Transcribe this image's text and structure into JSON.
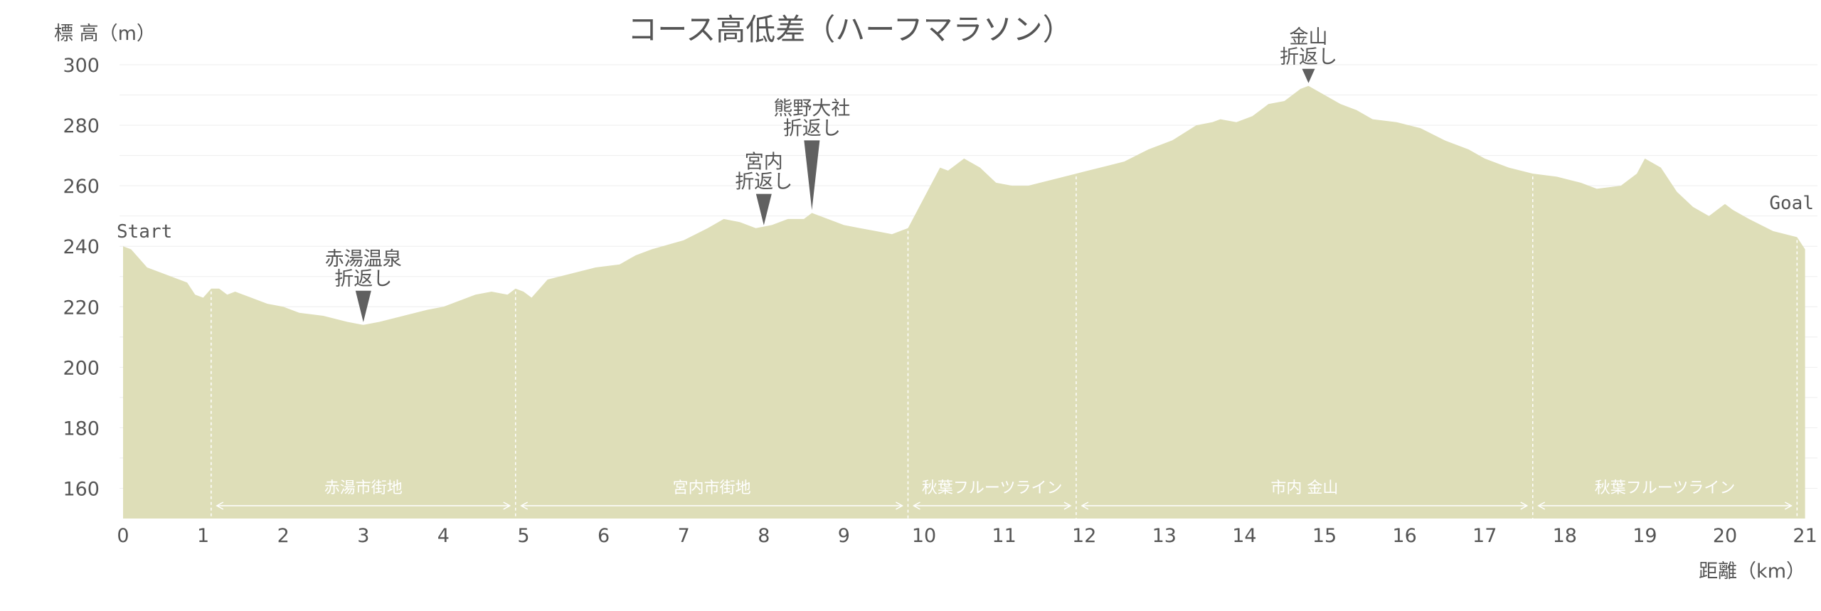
{
  "chart_data": {
    "type": "area",
    "title": "コース高低差（ハーフマラソン）",
    "ylabel": "標 高（m）",
    "xlabel": "距離（km）",
    "ylim": [
      150,
      300
    ],
    "xlim": [
      0,
      21
    ],
    "yticks": [
      160,
      180,
      200,
      220,
      240,
      260,
      280,
      300
    ],
    "xticks": [
      0,
      1,
      2,
      3,
      4,
      5,
      6,
      7,
      8,
      9,
      10,
      11,
      12,
      13,
      14,
      15,
      16,
      17,
      18,
      19,
      20,
      21
    ],
    "grid": true,
    "colors": {
      "fill": "#dedeb8",
      "grid": "#eeeeee",
      "text": "#555555",
      "marker": "#606060",
      "segment": "#ffffff"
    },
    "series": [
      {
        "x": [
          0,
          0.1,
          0.3,
          0.4,
          0.6,
          0.8,
          0.9,
          1.0,
          1.1,
          1.2,
          1.3,
          1.4,
          1.6,
          1.8,
          2.0,
          2.2,
          2.5,
          2.8,
          3.0,
          3.2,
          3.5,
          3.8,
          4.0,
          4.2,
          4.4,
          4.6,
          4.8,
          4.9,
          5.0,
          5.1,
          5.3,
          5.6,
          5.9,
          6.2,
          6.4,
          6.6,
          7.0,
          7.3,
          7.5,
          7.7,
          7.9,
          8.1,
          8.3,
          8.5,
          8.6,
          8.8,
          9.0,
          9.2,
          9.4,
          9.6,
          9.8,
          10.0,
          10.2,
          10.3,
          10.5,
          10.7,
          10.9,
          11.1,
          11.3,
          11.6,
          11.9,
          12.2,
          12.5,
          12.8,
          13.1,
          13.4,
          13.6,
          13.7,
          13.9,
          14.1,
          14.3,
          14.5,
          14.7,
          14.8,
          15.0,
          15.2,
          15.4,
          15.6,
          15.9,
          16.2,
          16.5,
          16.8,
          17.0,
          17.3,
          17.6,
          17.9,
          18.2,
          18.4,
          18.7,
          18.9,
          19.0,
          19.2,
          19.4,
          19.6,
          19.8,
          20.0,
          20.1,
          20.3,
          20.6,
          20.9,
          21.0
        ],
        "values": [
          240,
          239,
          233,
          232,
          230,
          228,
          224,
          223,
          226,
          226,
          224,
          225,
          223,
          221,
          220,
          218,
          217,
          215,
          214,
          215,
          217,
          219,
          220,
          222,
          224,
          225,
          224,
          226,
          225,
          223,
          229,
          231,
          233,
          234,
          237,
          239,
          242,
          246,
          249,
          248,
          246,
          247,
          249,
          249,
          251,
          249,
          247,
          246,
          245,
          244,
          246,
          256,
          266,
          265,
          269,
          266,
          261,
          260,
          260,
          262,
          264,
          266,
          268,
          272,
          275,
          280,
          281,
          282,
          281,
          283,
          287,
          288,
          292,
          293,
          290,
          287,
          285,
          282,
          281,
          279,
          275,
          272,
          269,
          266,
          264,
          263,
          261,
          259,
          260,
          264,
          269,
          266,
          258,
          253,
          250,
          254,
          252,
          249,
          245,
          243,
          239
        ]
      }
    ],
    "markers": [
      {
        "x": 3.0,
        "y": 214,
        "lines": [
          "赤湯温泉",
          "折返し"
        ]
      },
      {
        "x": 8.0,
        "y": 246,
        "lines": [
          "宮内",
          "折返し"
        ]
      },
      {
        "x": 8.6,
        "y": 251,
        "lines": [
          "熊野大社",
          "折返し"
        ]
      },
      {
        "x": 14.8,
        "y": 293,
        "lines": [
          "金山",
          "折返し"
        ]
      }
    ],
    "start_label": "Start",
    "goal_label": "Goal",
    "segments": [
      {
        "from": 1.1,
        "to": 4.9,
        "label": "赤湯市街地"
      },
      {
        "from": 4.9,
        "to": 9.8,
        "label": "宮内市街地"
      },
      {
        "from": 9.8,
        "to": 11.9,
        "label": "秋葉フルーツライン"
      },
      {
        "from": 11.9,
        "to": 17.6,
        "label": "市内 金山"
      },
      {
        "from": 17.6,
        "to": 20.9,
        "label": "秋葉フルーツライン"
      }
    ]
  }
}
